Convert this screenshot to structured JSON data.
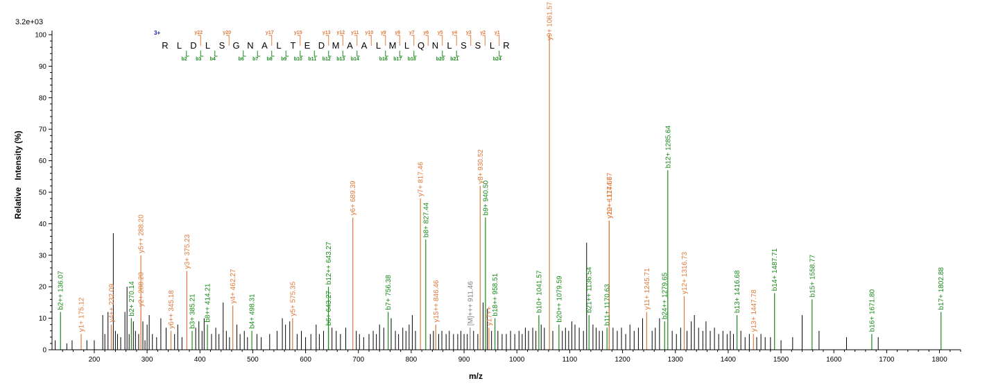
{
  "chart_data": {
    "type": "bar",
    "title": "",
    "xlabel": "m/z",
    "ylabel": "Relative   Intensity (%)",
    "scale_label": "3.2e+03",
    "xlim": [
      120,
      1840
    ],
    "ylim": [
      0,
      100
    ],
    "x_ticks": [
      200,
      300,
      400,
      500,
      600,
      700,
      800,
      900,
      1000,
      1100,
      1200,
      1300,
      1400,
      1500,
      1600,
      1700,
      1800
    ],
    "y_ticks": [
      0,
      10,
      20,
      30,
      40,
      50,
      60,
      70,
      80,
      90,
      100
    ],
    "colors": {
      "b_ion": "#1a8a1a",
      "y_ion": "#e07a3c",
      "precursor": "#808080",
      "unassigned": "#000000"
    },
    "annotated_peaks": [
      {
        "label": "b2++ 136.07",
        "mz": 136.07,
        "intensity": 12,
        "ion": "b"
      },
      {
        "label": "y1+ 175.12",
        "mz": 175.12,
        "intensity": 5,
        "ion": "y"
      },
      {
        "label": "y4++ 232.09",
        "mz": 232.09,
        "intensity": 8,
        "ion": "y"
      },
      {
        "label": "b2+ 270.14",
        "mz": 270.14,
        "intensity": 10,
        "ion": "b"
      },
      {
        "label": "y2+ 288.20",
        "mz": 288.2,
        "intensity": 13,
        "ion": "y"
      },
      {
        "label": "y5++ 288.20",
        "mz": 288.2,
        "intensity": 30,
        "ion": "y"
      },
      {
        "label": "y6++ 345.18",
        "mz": 345.18,
        "intensity": 6,
        "ion": "y"
      },
      {
        "label": "b3+ 385.21",
        "mz": 385.21,
        "intensity": 6,
        "ion": "b"
      },
      {
        "label": "y3+ 375.23",
        "mz": 375.23,
        "intensity": 25,
        "ion": "y"
      },
      {
        "label": "b8++ 414.21",
        "mz": 414.21,
        "intensity": 8,
        "ion": "b"
      },
      {
        "label": "y4+ 462.27",
        "mz": 462.27,
        "intensity": 14,
        "ion": "y"
      },
      {
        "label": "b4+ 498.31",
        "mz": 498.31,
        "intensity": 6,
        "ion": "b"
      },
      {
        "label": "y5+ 575.35",
        "mz": 575.35,
        "intensity": 10,
        "ion": "y"
      },
      {
        "label": "b6+ 643.27",
        "mz": 643.27,
        "intensity": 7,
        "ion": "b"
      },
      {
        "label": "b12++ 643.27",
        "mz": 643.27,
        "intensity": 20,
        "ion": "b"
      },
      {
        "label": "y6+ 689.39",
        "mz": 689.39,
        "intensity": 42,
        "ion": "y"
      },
      {
        "label": "b7+ 756.38",
        "mz": 756.38,
        "intensity": 12,
        "ion": "b"
      },
      {
        "label": "y7+ 817.46",
        "mz": 817.46,
        "intensity": 48,
        "ion": "y"
      },
      {
        "label": "b8+ 827.44",
        "mz": 827.44,
        "intensity": 35,
        "ion": "b"
      },
      {
        "label": "y15++ 846.46",
        "mz": 846.46,
        "intensity": 8,
        "ion": "y"
      },
      {
        "label": "[M]+++ 911.46",
        "mz": 911.46,
        "intensity": 7,
        "ion": "precursor"
      },
      {
        "label": "y8+ 930.52",
        "mz": 930.52,
        "intensity": 52,
        "ion": "y"
      },
      {
        "label": "b9+ 940.50",
        "mz": 940.5,
        "intensity": 42,
        "ion": "b"
      },
      {
        "label": "y17++",
        "mz": 947.0,
        "intensity": 7,
        "ion": "y"
      },
      {
        "label": "b18++ 958.51",
        "mz": 958.51,
        "intensity": 10,
        "ion": "b"
      },
      {
        "label": "b10+ 1041.57",
        "mz": 1041.57,
        "intensity": 11,
        "ion": "b"
      },
      {
        "label": "y9+ 1061.57",
        "mz": 1061.57,
        "intensity": 100,
        "ion": "y"
      },
      {
        "label": "b20++ 1079.59",
        "mz": 1079.59,
        "intensity": 8,
        "ion": "b"
      },
      {
        "label": "b21++ 1136.54",
        "mz": 1136.54,
        "intensity": 11,
        "ion": "b"
      },
      {
        "label": "b11+ 1170.63",
        "mz": 1170.63,
        "intensity": 7,
        "ion": "b"
      },
      {
        "label": "y10+ 1174.67",
        "mz": 1174.67,
        "intensity": 41,
        "ion": "y"
      },
      {
        "label": "y22++ 1174.67",
        "mz": 1174.67,
        "intensity": 41,
        "ion": "y"
      },
      {
        "label": "y11+ 1245.71",
        "mz": 1245.71,
        "intensity": 12,
        "ion": "y"
      },
      {
        "label": "b24++ 1279.65",
        "mz": 1279.65,
        "intensity": 9,
        "ion": "b"
      },
      {
        "label": "b12+ 1285.64",
        "mz": 1285.64,
        "intensity": 57,
        "ion": "b"
      },
      {
        "label": "y12+ 1316.73",
        "mz": 1316.73,
        "intensity": 17,
        "ion": "y"
      },
      {
        "label": "b13+ 1416.68",
        "mz": 1416.68,
        "intensity": 11,
        "ion": "b"
      },
      {
        "label": "y13+ 1447.78",
        "mz": 1447.78,
        "intensity": 5,
        "ion": "y"
      },
      {
        "label": "b14+ 1487.71",
        "mz": 1487.71,
        "intensity": 18,
        "ion": "b"
      },
      {
        "label": "b15+ 1558.77",
        "mz": 1558.77,
        "intensity": 16,
        "ion": "b"
      },
      {
        "label": "b16+ 1671.80",
        "mz": 1671.8,
        "intensity": 5,
        "ion": "b"
      },
      {
        "label": "b17+ 1802.88",
        "mz": 1802.88,
        "intensity": 12,
        "ion": "b"
      }
    ],
    "unassigned_peaks": [
      [
        126,
        3
      ],
      [
        148,
        2
      ],
      [
        158,
        3
      ],
      [
        186,
        3
      ],
      [
        200,
        3
      ],
      [
        216,
        11
      ],
      [
        220,
        5
      ],
      [
        226,
        12
      ],
      [
        236,
        37
      ],
      [
        240,
        6
      ],
      [
        244,
        5
      ],
      [
        250,
        4
      ],
      [
        258,
        12
      ],
      [
        262,
        20
      ],
      [
        266,
        5
      ],
      [
        274,
        9
      ],
      [
        278,
        6
      ],
      [
        284,
        5
      ],
      [
        292,
        9
      ],
      [
        296,
        3
      ],
      [
        300,
        8
      ],
      [
        304,
        11
      ],
      [
        310,
        5
      ],
      [
        318,
        4
      ],
      [
        326,
        10
      ],
      [
        336,
        7
      ],
      [
        352,
        5
      ],
      [
        358,
        8
      ],
      [
        366,
        4
      ],
      [
        392,
        7
      ],
      [
        398,
        9
      ],
      [
        404,
        6
      ],
      [
        408,
        10
      ],
      [
        422,
        5
      ],
      [
        430,
        7
      ],
      [
        436,
        5
      ],
      [
        444,
        15
      ],
      [
        450,
        6
      ],
      [
        456,
        4
      ],
      [
        470,
        8
      ],
      [
        476,
        5
      ],
      [
        484,
        6
      ],
      [
        490,
        4
      ],
      [
        508,
        5
      ],
      [
        516,
        4
      ],
      [
        532,
        5
      ],
      [
        546,
        6
      ],
      [
        556,
        10
      ],
      [
        562,
        8
      ],
      [
        570,
        9
      ],
      [
        584,
        5
      ],
      [
        592,
        6
      ],
      [
        600,
        4
      ],
      [
        610,
        5
      ],
      [
        620,
        8
      ],
      [
        626,
        5
      ],
      [
        634,
        6
      ],
      [
        650,
        7
      ],
      [
        658,
        6
      ],
      [
        666,
        5
      ],
      [
        676,
        7
      ],
      [
        696,
        6
      ],
      [
        702,
        5
      ],
      [
        710,
        4
      ],
      [
        720,
        5
      ],
      [
        728,
        6
      ],
      [
        734,
        5
      ],
      [
        740,
        8
      ],
      [
        748,
        7
      ],
      [
        762,
        10
      ],
      [
        770,
        6
      ],
      [
        776,
        5
      ],
      [
        784,
        7
      ],
      [
        790,
        6
      ],
      [
        796,
        8
      ],
      [
        802,
        11
      ],
      [
        808,
        6
      ],
      [
        836,
        5
      ],
      [
        842,
        6
      ],
      [
        852,
        5
      ],
      [
        858,
        6
      ],
      [
        866,
        5
      ],
      [
        872,
        6
      ],
      [
        880,
        5
      ],
      [
        888,
        5
      ],
      [
        894,
        6
      ],
      [
        900,
        5
      ],
      [
        906,
        5
      ],
      [
        918,
        6
      ],
      [
        926,
        5
      ],
      [
        936,
        15
      ],
      [
        944,
        13
      ],
      [
        952,
        6
      ],
      [
        964,
        6
      ],
      [
        972,
        5
      ],
      [
        980,
        5
      ],
      [
        988,
        6
      ],
      [
        996,
        5
      ],
      [
        1004,
        6
      ],
      [
        1010,
        5
      ],
      [
        1016,
        7
      ],
      [
        1022,
        6
      ],
      [
        1030,
        7
      ],
      [
        1036,
        6
      ],
      [
        1046,
        8
      ],
      [
        1052,
        7
      ],
      [
        1068,
        6
      ],
      [
        1086,
        6
      ],
      [
        1092,
        7
      ],
      [
        1098,
        6
      ],
      [
        1104,
        9
      ],
      [
        1110,
        8
      ],
      [
        1118,
        7
      ],
      [
        1126,
        6
      ],
      [
        1132,
        34
      ],
      [
        1144,
        8
      ],
      [
        1150,
        7
      ],
      [
        1156,
        6
      ],
      [
        1162,
        6
      ],
      [
        1182,
        7
      ],
      [
        1190,
        6
      ],
      [
        1198,
        7
      ],
      [
        1206,
        5
      ],
      [
        1214,
        8
      ],
      [
        1222,
        6
      ],
      [
        1230,
        7
      ],
      [
        1238,
        10
      ],
      [
        1256,
        6
      ],
      [
        1262,
        7
      ],
      [
        1270,
        10
      ],
      [
        1294,
        6
      ],
      [
        1302,
        5
      ],
      [
        1310,
        7
      ],
      [
        1322,
        6
      ],
      [
        1330,
        9
      ],
      [
        1336,
        11
      ],
      [
        1344,
        7
      ],
      [
        1352,
        6
      ],
      [
        1358,
        9
      ],
      [
        1366,
        6
      ],
      [
        1374,
        7
      ],
      [
        1382,
        5
      ],
      [
        1390,
        6
      ],
      [
        1398,
        5
      ],
      [
        1404,
        6
      ],
      [
        1410,
        5
      ],
      [
        1424,
        6
      ],
      [
        1432,
        4
      ],
      [
        1440,
        5
      ],
      [
        1454,
        4
      ],
      [
        1462,
        5
      ],
      [
        1470,
        4
      ],
      [
        1480,
        4
      ],
      [
        1500,
        3
      ],
      [
        1522,
        4
      ],
      [
        1540,
        11
      ],
      [
        1572,
        6
      ],
      [
        1624,
        4
      ],
      [
        1684,
        4
      ]
    ]
  },
  "sequence_panel": {
    "charge": "3+",
    "residues": [
      "R",
      "L",
      "D",
      "L",
      "S",
      "G",
      "N",
      "A",
      "L",
      "T",
      "E",
      "D",
      "M",
      "A",
      "A",
      "L",
      "M",
      "L",
      "Q",
      "N",
      "L",
      "S",
      "S",
      "L",
      "R"
    ],
    "y_ions": [
      {
        "label": "y22",
        "after": 3
      },
      {
        "label": "y20",
        "after": 5
      },
      {
        "label": "y17",
        "after": 8
      },
      {
        "label": "y15",
        "after": 10
      },
      {
        "label": "y13",
        "after": 12
      },
      {
        "label": "y12",
        "after": 13
      },
      {
        "label": "y11",
        "after": 14
      },
      {
        "label": "y10",
        "after": 15
      },
      {
        "label": "y9",
        "after": 16
      },
      {
        "label": "y8",
        "after": 17
      },
      {
        "label": "y7",
        "after": 18
      },
      {
        "label": "y6",
        "after": 19
      },
      {
        "label": "y5",
        "after": 20
      },
      {
        "label": "y4",
        "after": 21
      },
      {
        "label": "y3",
        "after": 22
      },
      {
        "label": "y2",
        "after": 23
      },
      {
        "label": "y1",
        "after": 24
      }
    ],
    "b_ions": [
      {
        "label": "b2",
        "after": 2
      },
      {
        "label": "b3",
        "after": 3
      },
      {
        "label": "b4",
        "after": 4
      },
      {
        "label": "b6",
        "after": 6
      },
      {
        "label": "b7",
        "after": 7
      },
      {
        "label": "b8",
        "after": 8
      },
      {
        "label": "b9",
        "after": 9
      },
      {
        "label": "b10",
        "after": 10
      },
      {
        "label": "b11",
        "after": 11
      },
      {
        "label": "b12",
        "after": 12
      },
      {
        "label": "b13",
        "after": 13
      },
      {
        "label": "b14",
        "after": 14
      },
      {
        "label": "b16",
        "after": 16
      },
      {
        "label": "b17",
        "after": 17
      },
      {
        "label": "b18",
        "after": 18
      },
      {
        "label": "b20",
        "after": 20
      },
      {
        "label": "b21",
        "after": 21
      },
      {
        "label": "b24",
        "after": 24
      }
    ]
  }
}
